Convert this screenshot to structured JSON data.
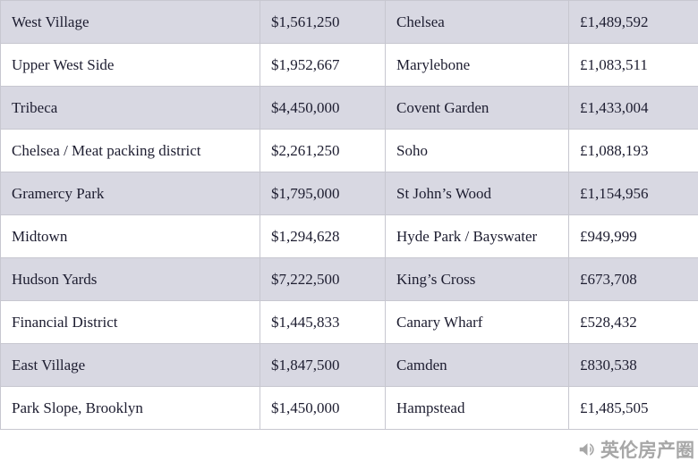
{
  "chart_data": {
    "type": "table",
    "description_visible": false,
    "rows": [
      [
        "West Village",
        "$1,561,250",
        "Chelsea",
        "£1,489,592"
      ],
      [
        "Upper West Side",
        "$1,952,667",
        "Marylebone",
        "£1,083,511"
      ],
      [
        "Tribeca",
        "$4,450,000",
        "Covent Garden",
        "£1,433,004"
      ],
      [
        "Chelsea / Meat packing district",
        "$2,261,250",
        "Soho",
        "£1,088,193"
      ],
      [
        "Gramercy Park",
        "$1,795,000",
        "St John’s Wood",
        "£1,154,956"
      ],
      [
        "Midtown",
        "$1,294,628",
        "Hyde Park / Bayswater",
        "£949,999"
      ],
      [
        "Hudson Yards",
        "$7,222,500",
        "King’s Cross",
        "£673,708"
      ],
      [
        "Financial District",
        "$1,445,833",
        "Canary Wharf",
        "£528,432"
      ],
      [
        "East Village",
        "$1,847,500",
        "Camden",
        "£830,538"
      ],
      [
        "Park Slope, Brooklyn",
        "$1,450,000",
        "Hampstead",
        "£1,485,505"
      ]
    ]
  },
  "watermark": {
    "text": "英伦房产圈",
    "icon": "megaphone-icon"
  },
  "colors": {
    "row_shaded": "#d8d8e2",
    "row_plain": "#ffffff",
    "border": "#c7c7d0",
    "text": "#1d1d30",
    "watermark": "#a0a0a0"
  }
}
